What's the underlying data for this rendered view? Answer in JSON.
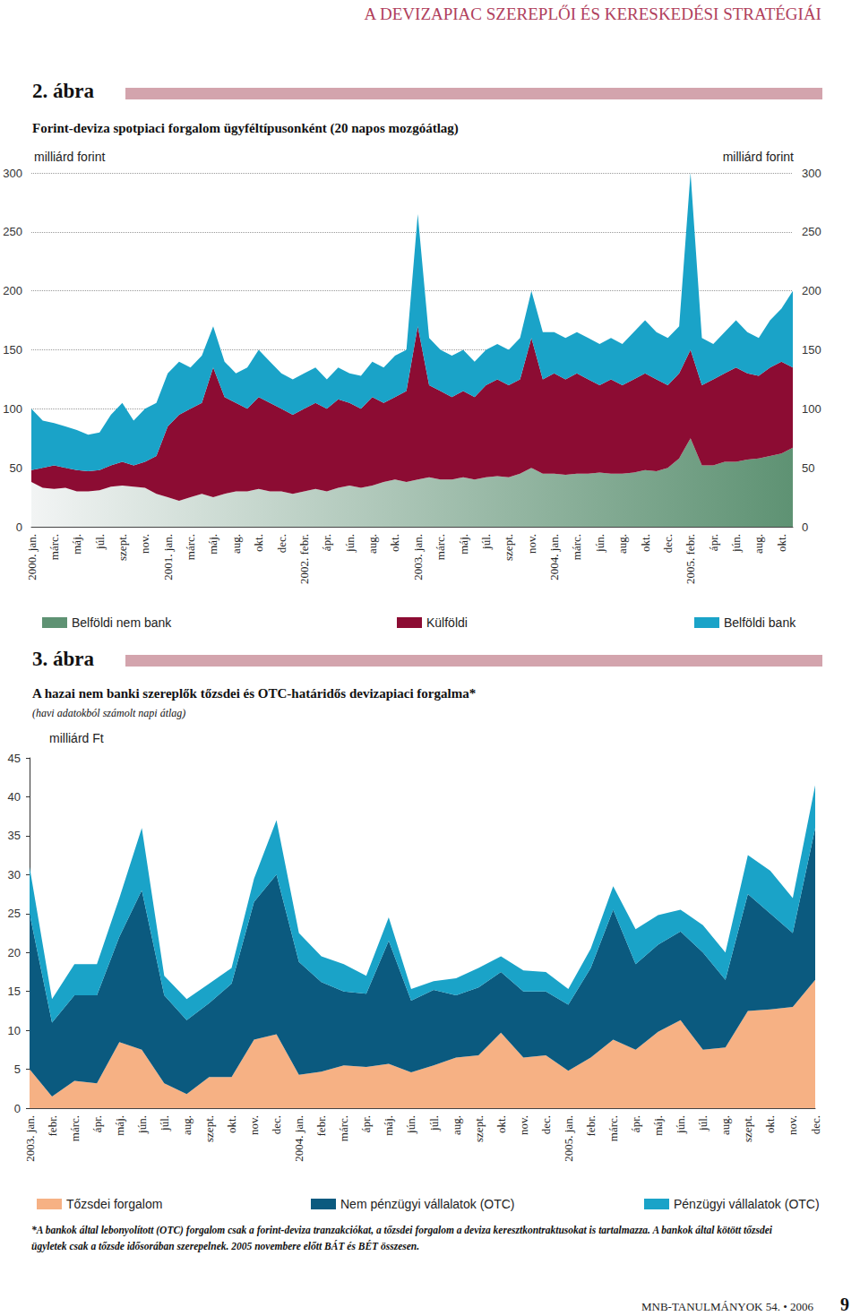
{
  "header": "A DEVIZAPIAC SZEREPLŐI ÉS KERESKEDÉSI STRATÉGIÁI",
  "chart_data": [
    {
      "type": "area",
      "stacked": true,
      "grid": true,
      "figure_label": "2. ábra",
      "title": "Forint-deviza spotpiaci forgalom ügyféltípusonként (20 napos mozgóátlag)",
      "y_label": "milliárd forint",
      "y2_label": "milliárd forint",
      "ylim": [
        0,
        300
      ],
      "yticks": [
        0,
        50,
        100,
        150,
        200,
        250,
        300
      ],
      "y2lim": [
        0,
        300
      ],
      "y2ticks": [
        0,
        50,
        100,
        150,
        200,
        250,
        300
      ],
      "categories": [
        "2000. jan.",
        null,
        "márc.",
        null,
        "máj.",
        null,
        "júl.",
        null,
        "szept.",
        null,
        "nov.",
        null,
        "2001. jan.",
        null,
        "márc.",
        null,
        "máj.",
        null,
        "aug.",
        null,
        "okt.",
        null,
        "dec.",
        null,
        "2002. febr.",
        null,
        "ápr.",
        null,
        "jún.",
        null,
        "aug.",
        null,
        "okt.",
        null,
        "2003. jan.",
        null,
        "márc.",
        null,
        "máj.",
        null,
        "júl.",
        null,
        "szept.",
        null,
        "nov.",
        null,
        "2004. jan.",
        null,
        "márc.",
        null,
        "jún.",
        null,
        "aug.",
        null,
        "okt.",
        null,
        "dec.",
        null,
        "2005. febr.",
        null,
        "ápr.",
        null,
        "jún.",
        null,
        "aug.",
        null,
        "okt.",
        null
      ],
      "series": [
        {
          "name": "Belföldi nem bank",
          "color": "#5e9273",
          "values": [
            38,
            33,
            32,
            33,
            30,
            30,
            31,
            34,
            35,
            34,
            33,
            28,
            25,
            22,
            25,
            28,
            25,
            28,
            30,
            30,
            32,
            30,
            30,
            28,
            30,
            32,
            30,
            33,
            35,
            33,
            35,
            38,
            40,
            38,
            40,
            42,
            40,
            40,
            42,
            40,
            42,
            43,
            42,
            45,
            50,
            45,
            45,
            44,
            45,
            45,
            46,
            45,
            45,
            46,
            48,
            47,
            50,
            58,
            75,
            52,
            52,
            55,
            55,
            57,
            58,
            60,
            62,
            67
          ]
        },
        {
          "name": "Külföldi",
          "color": "#8c0c33",
          "values": [
            10,
            17,
            20,
            17,
            18,
            17,
            17,
            18,
            20,
            18,
            22,
            32,
            60,
            73,
            75,
            77,
            110,
            82,
            75,
            70,
            78,
            75,
            70,
            67,
            70,
            73,
            70,
            75,
            70,
            67,
            75,
            67,
            70,
            77,
            130,
            78,
            75,
            70,
            73,
            70,
            78,
            82,
            78,
            80,
            110,
            80,
            85,
            81,
            85,
            80,
            74,
            80,
            75,
            79,
            82,
            78,
            70,
            72,
            75,
            68,
            73,
            75,
            80,
            73,
            70,
            75,
            78,
            68
          ]
        },
        {
          "name": "Belföldi bank",
          "color": "#1aa3c8",
          "values": [
            52,
            40,
            36,
            35,
            34,
            31,
            32,
            43,
            50,
            38,
            45,
            45,
            45,
            45,
            35,
            40,
            35,
            30,
            25,
            35,
            40,
            35,
            30,
            30,
            30,
            30,
            25,
            27,
            25,
            28,
            30,
            30,
            35,
            35,
            95,
            40,
            35,
            35,
            35,
            30,
            30,
            30,
            30,
            35,
            40,
            40,
            35,
            35,
            35,
            35,
            35,
            35,
            35,
            40,
            45,
            40,
            40,
            40,
            150,
            40,
            30,
            35,
            40,
            35,
            32,
            40,
            45,
            65
          ]
        }
      ]
    },
    {
      "type": "area",
      "stacked": true,
      "grid": false,
      "figure_label": "3. ábra",
      "title": "A hazai nem banki szereplők tőzsdei és OTC-határidős devizapiaci forgalma*",
      "subtitle": "(havi adatokból számolt napi átlag)",
      "y_label": "milliárd Ft",
      "ylim": [
        0,
        45
      ],
      "yticks": [
        0,
        5,
        10,
        15,
        20,
        25,
        30,
        35,
        40,
        45
      ],
      "categories": [
        "2003. jan.",
        "febr.",
        "márc.",
        "ápr.",
        "máj.",
        "jún.",
        "júl.",
        "aug.",
        "szept.",
        "okt.",
        "nov.",
        "dec.",
        "2004. jan.",
        "febr.",
        "márc.",
        "ápr.",
        "máj.",
        "jún.",
        "júl.",
        "aug.",
        "szept.",
        "okt.",
        "nov.",
        "dec.",
        "2005. jan.",
        "febr.",
        "márc.",
        "ápr.",
        "máj.",
        "jún.",
        "júl.",
        "aug.",
        "szept.",
        "okt.",
        "nov.",
        "dec."
      ],
      "series": [
        {
          "name": "Tőzsdei forgalom",
          "color": "#f6b184",
          "values": [
            5,
            1.5,
            3.5,
            3.2,
            8.5,
            7.5,
            3.2,
            1.8,
            4,
            4,
            8.8,
            9.5,
            4.3,
            4.7,
            5.5,
            5.3,
            5.7,
            4.6,
            5.5,
            6.5,
            6.8,
            9.7,
            6.5,
            6.8,
            4.8,
            6.5,
            8.8,
            7.5,
            9.8,
            11.3,
            7.5,
            7.8,
            12.5,
            12.7,
            13,
            16.5
          ]
        },
        {
          "name": "Nem pénzügyi vállalatok (OTC)",
          "color": "#0b5a7f",
          "values": [
            20,
            9.5,
            11,
            11.3,
            13.5,
            20.5,
            11.3,
            9.5,
            9.5,
            12,
            17.7,
            20.5,
            14.5,
            11.5,
            9.5,
            9.4,
            15.8,
            9.2,
            9.7,
            8,
            8.7,
            7.8,
            8.5,
            8.2,
            8.5,
            11.5,
            16.7,
            11,
            11.2,
            11.4,
            12.5,
            8.7,
            15,
            12.3,
            9.5,
            19.5
          ]
        },
        {
          "name": "Pénzügyi vállalatok (OTC)",
          "color": "#1aa3c8",
          "values": [
            6,
            3,
            4,
            4,
            5,
            8,
            2.5,
            2.7,
            2.5,
            2,
            3,
            7,
            3.7,
            3.3,
            3.5,
            2.3,
            3,
            1.5,
            1.1,
            2.2,
            2.5,
            2,
            2.7,
            2.5,
            2,
            2.5,
            3,
            4.5,
            3.8,
            2.8,
            3.5,
            3.5,
            5,
            5.5,
            4.5,
            5.5
          ]
        }
      ]
    }
  ],
  "footnote": "*A bankok által lebonyolított (OTC) forgalom csak a forint-deviza tranzakciókat, a tőzsdei forgalom a deviza keresztkontraktusokat is tartalmazza. A bankok által kötött tőzsdei ügyletek csak a tőzsde idősorában szerepelnek. 2005 novembere előtt BÁT és BÉT összesen.",
  "footer": {
    "journal": "MNB-TANULMÁNYOK 54. • 2006",
    "page": "9"
  }
}
